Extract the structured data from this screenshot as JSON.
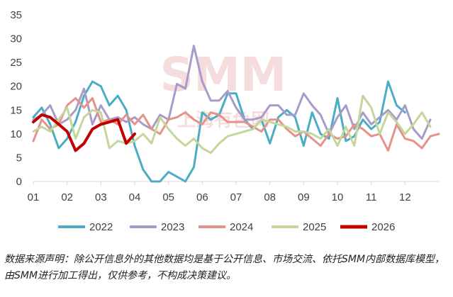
{
  "chart_data": {
    "type": "line",
    "title": "",
    "xlabel": "",
    "ylabel": "",
    "x_tick_labels": [
      "01",
      "02",
      "03",
      "04",
      "05",
      "06",
      "07",
      "08",
      "09",
      "10",
      "11",
      "12"
    ],
    "ylim": [
      0,
      35
    ],
    "y_ticks": [
      0,
      5,
      10,
      15,
      20,
      25,
      30,
      35
    ],
    "x_range": [
      1,
      13
    ],
    "legend_position": "bottom",
    "series": [
      {
        "name": "2022",
        "color": "#4BACC6",
        "x": [
          1,
          1.25,
          1.5,
          1.75,
          2,
          2.25,
          2.5,
          2.75,
          3,
          3.25,
          3.5,
          3.75,
          4,
          4.25,
          4.5,
          4.75,
          5,
          5.25,
          5.5,
          5.75,
          6,
          6.25,
          6.5,
          6.75,
          7,
          7.25,
          7.5,
          7.75,
          8,
          8.25,
          8.5,
          8.75,
          9,
          9.25,
          9.5,
          9.75,
          10,
          10.25,
          10.5,
          10.75,
          11,
          11.25,
          11.5,
          11.75,
          12
        ],
        "y": [
          13.5,
          15.5,
          12,
          7,
          9,
          12.5,
          18,
          21,
          20,
          16,
          18,
          15,
          7.5,
          2.5,
          0,
          0,
          2,
          1,
          0,
          3,
          14.5,
          13,
          14,
          18.5,
          18.5,
          13,
          11,
          13,
          8,
          13.5,
          15,
          13.5,
          7.5,
          14.5,
          10,
          9,
          17.5,
          8.5,
          9.5,
          13,
          11,
          12.5,
          21,
          16,
          14.5
        ]
      },
      {
        "name": "2023",
        "color": "#A99BC9",
        "x": [
          1,
          1.25,
          1.5,
          1.75,
          2,
          2.25,
          2.5,
          2.75,
          3,
          3.25,
          3.5,
          3.75,
          4,
          4.25,
          4.5,
          4.75,
          5,
          5.25,
          5.5,
          5.75,
          6,
          6.25,
          6.5,
          6.75,
          7,
          7.25,
          7.5,
          7.75,
          8,
          8.25,
          8.5,
          8.75,
          9,
          9.25,
          9.5,
          9.75,
          10,
          10.25,
          10.5,
          10.75,
          11,
          11.25,
          11.5,
          11.75,
          12,
          12.25,
          12.5,
          12.75
        ],
        "y": [
          13,
          14,
          16,
          12,
          13,
          15,
          19.5,
          12,
          16,
          13,
          13.5,
          12.5,
          13.5,
          12,
          11,
          14,
          13,
          20.5,
          19.5,
          28.5,
          21,
          17,
          17,
          19,
          15.5,
          13,
          13,
          13.5,
          16,
          16,
          14,
          14,
          18.5,
          16,
          14,
          10,
          13.5,
          16,
          11,
          14.5,
          12,
          13.5,
          15,
          13,
          16,
          11,
          9,
          13
        ]
      },
      {
        "name": "2024",
        "color": "#E4928A",
        "x": [
          1,
          1.25,
          1.5,
          1.75,
          2,
          2.25,
          2.5,
          2.75,
          3,
          3.25,
          3.5,
          3.75,
          4,
          4.25,
          4.5,
          4.75,
          5,
          5.25,
          5.5,
          5.75,
          6,
          6.25,
          6.5,
          6.75,
          7,
          7.25,
          7.5,
          7.75,
          8,
          8.25,
          8.5,
          8.75,
          9,
          9.25,
          9.5,
          9.75,
          10,
          10.25,
          10.5,
          10.75,
          11,
          11.25,
          11.5,
          11.75,
          12,
          12.25,
          12.5,
          12.75,
          13
        ],
        "y": [
          8.5,
          13,
          11,
          12,
          16,
          17.5,
          15.5,
          17.5,
          12.5,
          13,
          12,
          14,
          12,
          14,
          11,
          10,
          13,
          13.5,
          14.5,
          13,
          12,
          14.5,
          14,
          12.5,
          12.5,
          12.5,
          11.5,
          10.5,
          13,
          13,
          11,
          9.5,
          10.5,
          9,
          7.5,
          10,
          9,
          9.5,
          12,
          11,
          9.5,
          10,
          6.5,
          12,
          9,
          8.5,
          7,
          9.5,
          10
        ]
      },
      {
        "name": "2025",
        "color": "#C3D69B",
        "x": [
          1,
          1.25,
          1.5,
          1.75,
          2,
          2.25,
          2.5,
          2.75,
          3,
          3.25,
          3.5,
          3.75,
          4,
          4.25,
          4.5,
          4.75,
          5,
          5.25,
          5.5,
          5.75,
          6,
          6.25,
          6.5,
          6.75,
          7,
          7.25,
          7.5,
          7.75,
          8,
          8.25,
          8.5,
          8.75,
          9,
          9.25,
          9.5,
          9.75,
          10,
          10.25,
          10.5,
          10.75,
          11,
          11.25,
          11.5,
          11.75,
          12,
          12.25,
          12.5,
          12.75
        ],
        "y": [
          10.5,
          11.5,
          10.5,
          13,
          15.5,
          9,
          13.5,
          15,
          14.5,
          7,
          8.5,
          8,
          8.5,
          10,
          8,
          13.5,
          11,
          9,
          7.5,
          9,
          7,
          6,
          8,
          9.5,
          10,
          10.5,
          11,
          13,
          12.5,
          12,
          11.5,
          10.5,
          10.5,
          10,
          9,
          11,
          7.5,
          11.5,
          7.5,
          18,
          15.5,
          10,
          14.5,
          12.5,
          10,
          12,
          14.5,
          11.5
        ]
      },
      {
        "name": "2026",
        "color": "#C00000",
        "x": [
          1,
          1.25,
          1.5,
          1.75,
          2,
          2.25,
          2.5,
          2.75,
          3,
          3.25,
          3.5,
          3.75,
          4
        ],
        "y": [
          12.5,
          14,
          13.5,
          12,
          10.5,
          6.5,
          8,
          11,
          12,
          12.5,
          13,
          8,
          10
        ]
      }
    ]
  },
  "watermark": {
    "text": "SMM",
    "subtext": "上海有色网"
  },
  "source_note": "数据来源声明：除公开信息外的其他数据均是基于公开信息、市场交流、依托SMM内部数据库模型，由SMM进行加工得出，仅供参考，不构成决策建议。"
}
